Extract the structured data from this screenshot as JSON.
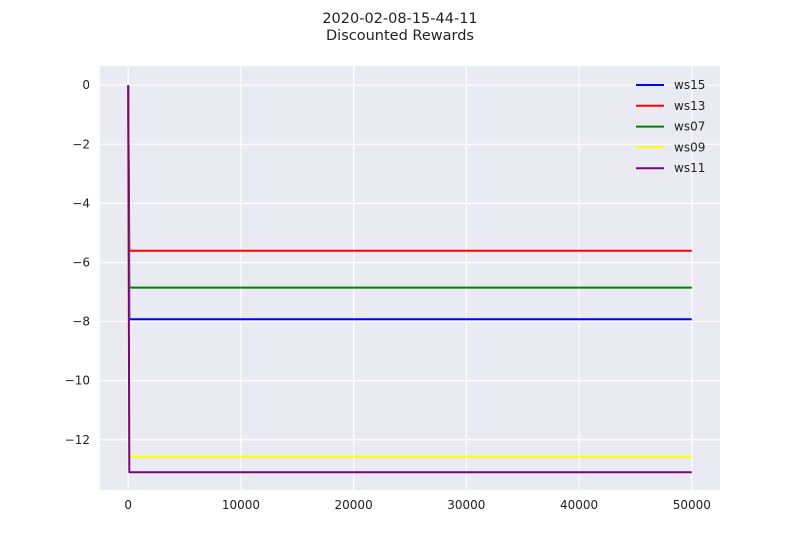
{
  "chart_data": {
    "type": "line",
    "title": "2020-02-08-15-44-11",
    "subtitle": "Discounted Rewards",
    "xlabel": "",
    "ylabel": "",
    "xlim": [
      -2500,
      52500
    ],
    "ylim": [
      -13.7,
      0.65
    ],
    "xticks": [
      0,
      10000,
      20000,
      30000,
      40000,
      50000
    ],
    "xtick_labels": [
      "0",
      "10000",
      "20000",
      "30000",
      "40000",
      "50000"
    ],
    "yticks": [
      0,
      -2,
      -4,
      -6,
      -8,
      -10,
      -12
    ],
    "ytick_labels": [
      "0",
      "−2",
      "−4",
      "−6",
      "−8",
      "−10",
      "−12"
    ],
    "grid": true,
    "legend_position": "top-right",
    "background": "#eaeaf2",
    "series": [
      {
        "name": "ws15",
        "color": "#0000ff",
        "x": [
          0,
          100,
          50000
        ],
        "y": [
          0,
          -7.92,
          -7.92
        ]
      },
      {
        "name": "ws13",
        "color": "#ff0000",
        "x": [
          0,
          100,
          50000
        ],
        "y": [
          0,
          -5.6,
          -5.6
        ]
      },
      {
        "name": "ws07",
        "color": "#008000",
        "x": [
          0,
          100,
          50000
        ],
        "y": [
          0,
          -6.85,
          -6.85
        ]
      },
      {
        "name": "ws09",
        "color": "#ffff00",
        "x": [
          0,
          100,
          50000
        ],
        "y": [
          0,
          -12.57,
          -12.57
        ]
      },
      {
        "name": "ws11",
        "color": "#800080",
        "x": [
          0,
          100,
          50000
        ],
        "y": [
          0,
          -13.1,
          -13.1
        ]
      }
    ]
  }
}
